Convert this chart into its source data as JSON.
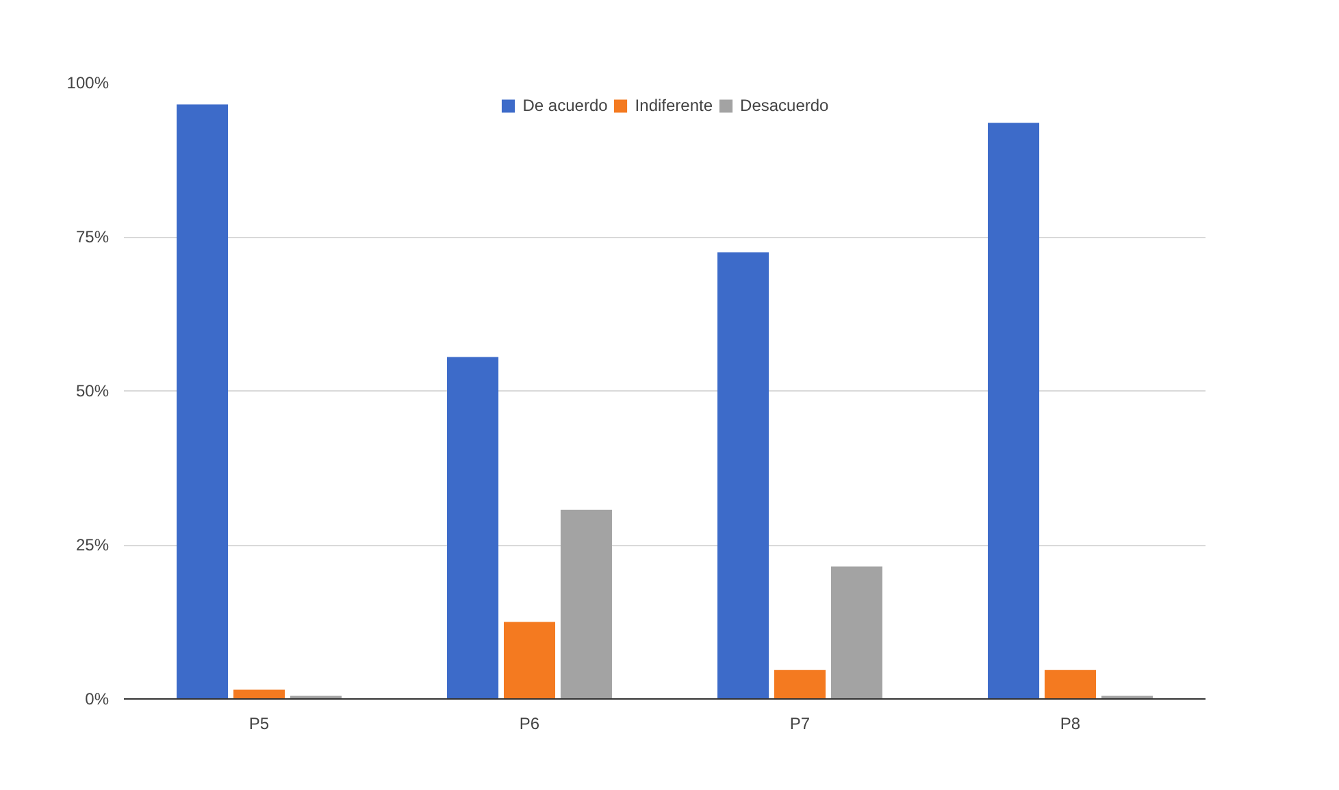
{
  "chart_data": {
    "type": "bar",
    "categories": [
      "P5",
      "P6",
      "P7",
      "P8"
    ],
    "series": [
      {
        "name": "De acuerdo",
        "color": "#3d6bc9",
        "values": [
          96.5,
          55.5,
          72.5,
          93.5
        ]
      },
      {
        "name": "Indiferente",
        "color": "#f47a20",
        "values": [
          1.5,
          12.5,
          4.7,
          4.7
        ]
      },
      {
        "name": "Desacuerdo",
        "color": "#a3a3a3",
        "values": [
          0.5,
          30.7,
          21.5,
          0.5
        ]
      }
    ],
    "ylim": [
      0,
      100
    ],
    "yticks": [
      {
        "value": 0,
        "label": "0%"
      },
      {
        "value": 25,
        "label": "25%"
      },
      {
        "value": 50,
        "label": "50%"
      },
      {
        "value": 75,
        "label": "75%"
      },
      {
        "value": 100,
        "label": "100%"
      }
    ],
    "grid": "y",
    "legend": "top"
  }
}
